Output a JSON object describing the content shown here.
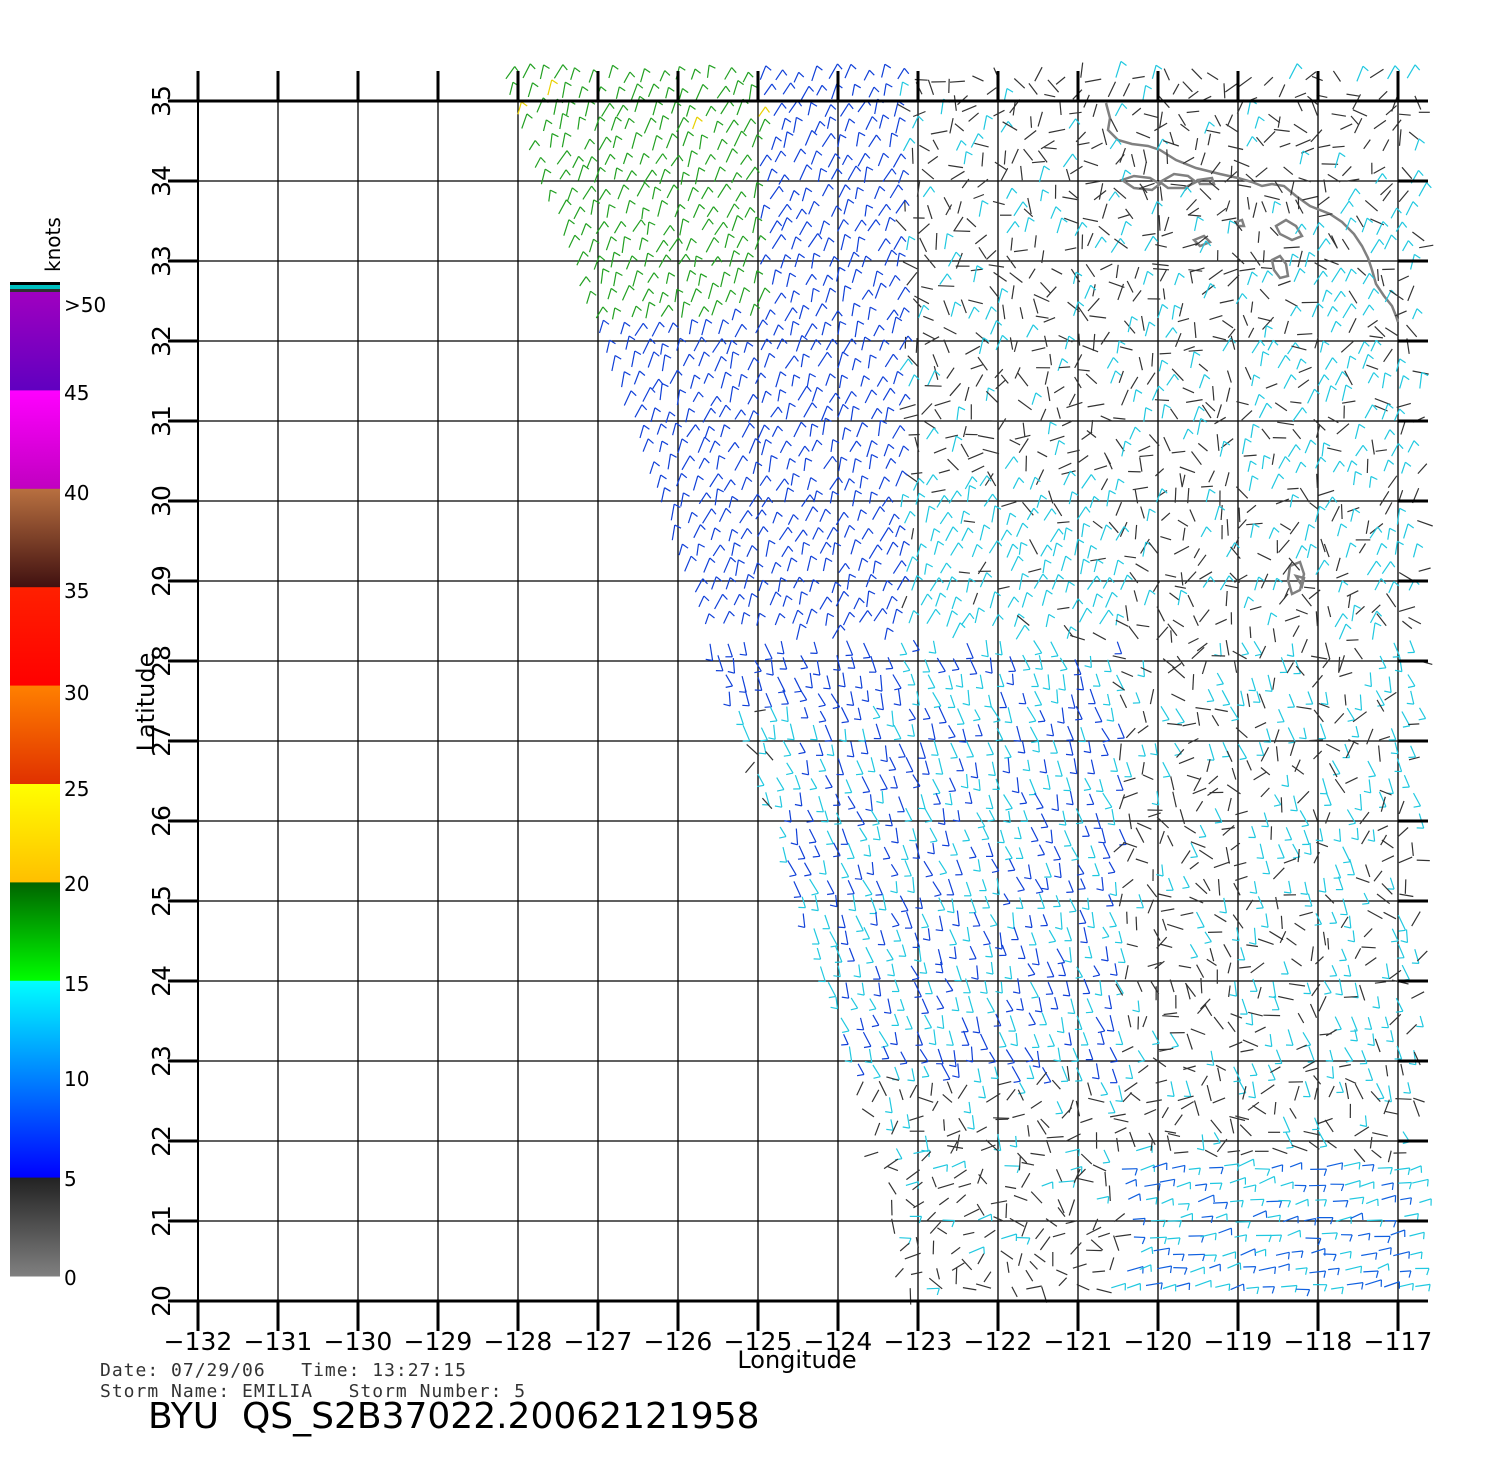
{
  "map": {
    "x_axis_label": "Longitude",
    "y_axis_label": "Latitude",
    "lon_ticks": [
      "−132",
      "−131",
      "−130",
      "−129",
      "−128",
      "−127",
      "−126",
      "−125",
      "−124",
      "−123",
      "−122",
      "−121",
      "−120",
      "−119",
      "−118",
      "−117"
    ],
    "lat_ticks": [
      "20",
      "21",
      "22",
      "23",
      "24",
      "25",
      "26",
      "27",
      "28",
      "29",
      "30",
      "31",
      "32",
      "33",
      "34",
      "35"
    ],
    "lon_range": [
      -132,
      -116.6
    ],
    "lat_range": [
      20,
      35
    ],
    "grid": true,
    "coastline_color": "#808080",
    "wind_vectors": "speed-coloured wind barbs over the scatterometer swath"
  },
  "colorbar": {
    "unit_label": "knots",
    "labels": [
      ">50",
      "45",
      "40",
      "35",
      "30",
      "25",
      "20",
      "15",
      "10",
      "5",
      "0"
    ],
    "colors": {
      "0-5": [
        "#808080",
        "#222222"
      ],
      "5-15": [
        "#00ffff",
        "#0000ff"
      ],
      "15-20": [
        "#006400",
        "#00ff00"
      ],
      "20-25": [
        "#ffff00",
        "#ffbf00"
      ],
      "25-30": [
        "#ff8000",
        "#e03000"
      ],
      "30-35": [
        "#ff2000",
        "#ff0000"
      ],
      "35-40": [
        "#b87040",
        "#401010"
      ],
      "40-45": [
        "#ff00ff",
        "#c000c0"
      ],
      "45-50": [
        "#a000c0",
        "#6000c0"
      ]
    }
  },
  "info": {
    "date_line": "Date: 07/29/06   Time: 13:27:15",
    "storm_line": "Storm Name: EMILIA   Storm Number: 5",
    "file_id": "BYU  QS_S2B37022.20062121958"
  }
}
